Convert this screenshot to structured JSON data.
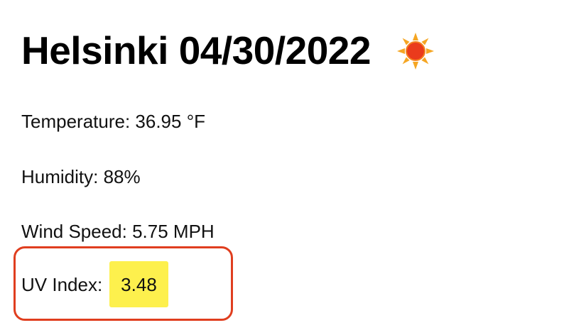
{
  "header": {
    "city": "Helsinki",
    "date": "04/30/2022",
    "title": "Helsinki 04/30/2022",
    "icon": "sun-icon"
  },
  "stats": {
    "temperature": "Temperature: 36.95 °F",
    "humidity": "Humidity: 88%",
    "wind_speed": "Wind Speed: 5.75 MPH",
    "uv_label": "UV Index:",
    "uv_value": "3.48"
  },
  "colors": {
    "uv_badge_background": "#fdf04d",
    "highlight_border": "#e03e1f",
    "sun_core": "#ea3b1c",
    "sun_rays": "#f5a623"
  }
}
